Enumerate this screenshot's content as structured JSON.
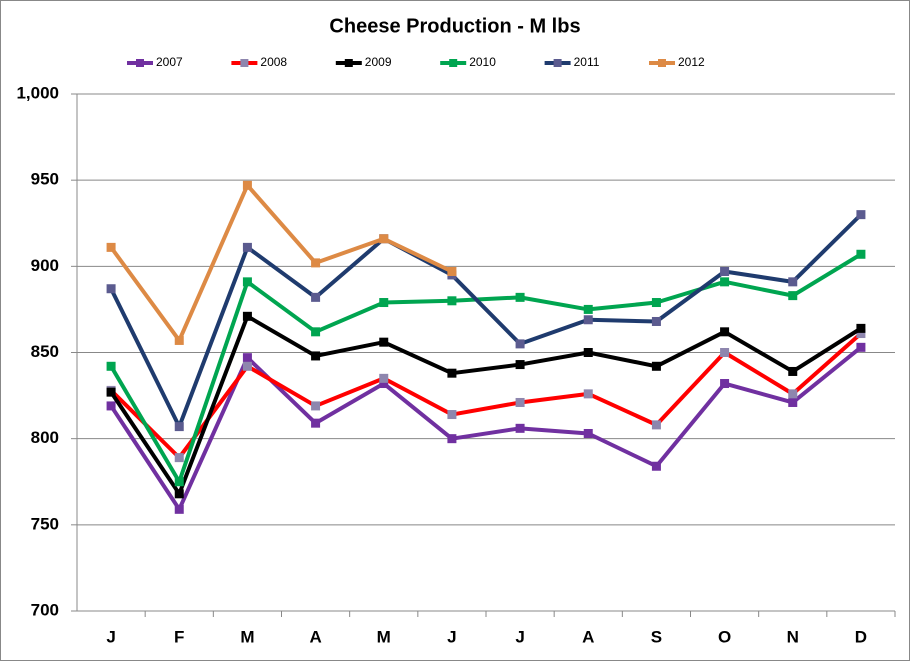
{
  "chart_data": {
    "type": "line",
    "title": "Cheese Production  - M lbs",
    "categories": [
      "J",
      "F",
      "M",
      "A",
      "M",
      "J",
      "J",
      "A",
      "S",
      "O",
      "N",
      "D"
    ],
    "series": [
      {
        "name": "2007",
        "color": "#7030a0",
        "marker_color": "#7030a0",
        "values": [
          819,
          759,
          847,
          809,
          832,
          800,
          806,
          803,
          784,
          832,
          821,
          853
        ]
      },
      {
        "name": "2008",
        "color": "#ff0000",
        "marker_color": "#8e86ae",
        "values": [
          828,
          789,
          842,
          819,
          835,
          814,
          821,
          826,
          808,
          850,
          826,
          861
        ]
      },
      {
        "name": "2009",
        "color": "#000000",
        "marker_color": "#000000",
        "values": [
          827,
          768,
          871,
          848,
          856,
          838,
          843,
          850,
          842,
          862,
          839,
          864
        ]
      },
      {
        "name": "2010",
        "color": "#00a550",
        "marker_color": "#00a550",
        "values": [
          842,
          775,
          891,
          862,
          879,
          880,
          882,
          875,
          879,
          891,
          883,
          907
        ]
      },
      {
        "name": "2011",
        "color": "#1f3b6e",
        "marker_color": "#5b5b8f",
        "values": [
          887,
          807,
          911,
          882,
          916,
          895,
          855,
          869,
          868,
          897,
          891,
          930
        ]
      },
      {
        "name": "2012",
        "color": "#dd8a45",
        "marker_color": "#dd8a45",
        "values": [
          911,
          857,
          947,
          902,
          916,
          897,
          null,
          null,
          null,
          null,
          null,
          null
        ]
      }
    ],
    "ylim": [
      700,
      1000
    ],
    "yticks": [
      700,
      750,
      800,
      850,
      900,
      950,
      {
        "value": 1000,
        "label": "1,000"
      }
    ],
    "grid": true,
    "legend": "top"
  }
}
